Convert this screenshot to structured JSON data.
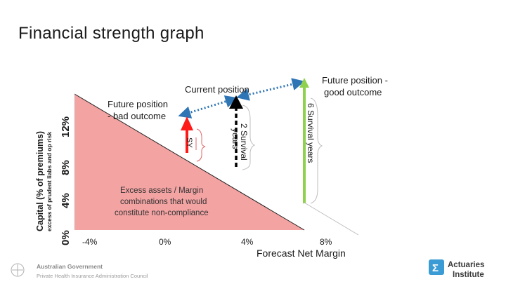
{
  "slide": {
    "title": "Financial strength graph"
  },
  "axes": {
    "y_label_main": "Capital (% of premiums)",
    "y_label_sub": "excess of prudent liabs and op risk",
    "y_ticks": [
      "0%",
      "4%",
      "8%",
      "12%"
    ],
    "x_ticks": [
      "-4%",
      "0%",
      "4%",
      "8%"
    ],
    "x_label": "Forecast Net Margin"
  },
  "annotations": {
    "current_position": "Current position",
    "good_outcome_line1": "Future position -",
    "good_outcome_line2": "good outcome",
    "bad_outcome_line1": "Future position",
    "bad_outcome_line2": "- bad outcome",
    "six_survival": "6 Survival years",
    "two_survival_line1": "2 Survival",
    "two_survival_line2": "years",
    "sy": "SY",
    "excess_line1": "Excess assets / Margin",
    "excess_line2": "combinations that would",
    "excess_line3": "constitute non-compliance"
  },
  "footer": {
    "gov_line1": "Australian Government",
    "gov_line2": "Private Health Insurance Administration Council",
    "brand_line1": "Actuaries",
    "brand_line2": "Institute"
  },
  "colors": {
    "region_fill": "#f4a3a3",
    "good_arrow": "#8fd14f",
    "bad_arrow": "#ff1a1a",
    "current_arrow": "#000000",
    "dotted_link": "#2e75b6",
    "brace": "#bfbfbf",
    "small_brace": "#e06666",
    "brand_blue": "#3a9bd5"
  },
  "chart_data": {
    "type": "area",
    "x": [
      -4,
      8
    ],
    "y": [
      0,
      12
    ],
    "xlim": [
      -4,
      8
    ],
    "ylim": [
      0,
      12
    ],
    "xlabel": "Forecast Net Margin",
    "ylabel": "Capital (% of premiums)",
    "grid": false
  }
}
